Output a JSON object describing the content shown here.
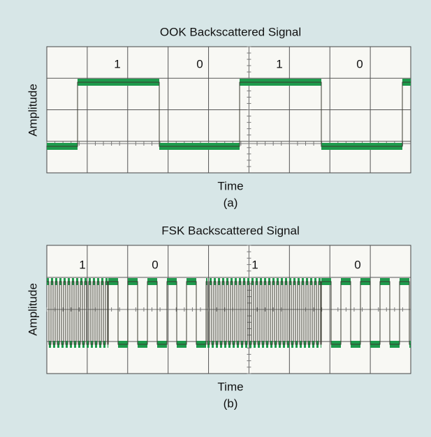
{
  "panels": [
    {
      "title": "OOK Backscattered Signal",
      "bits": [
        "1",
        "0",
        "1",
        "0"
      ],
      "y_label": "Amplitude",
      "x_label": "Time",
      "caption": "(a)"
    },
    {
      "title": "FSK Backscattered Signal",
      "bits": [
        "1",
        "0",
        "1",
        "0"
      ],
      "y_label": "Amplitude",
      "x_label": "Time",
      "caption": "(b)"
    }
  ]
}
